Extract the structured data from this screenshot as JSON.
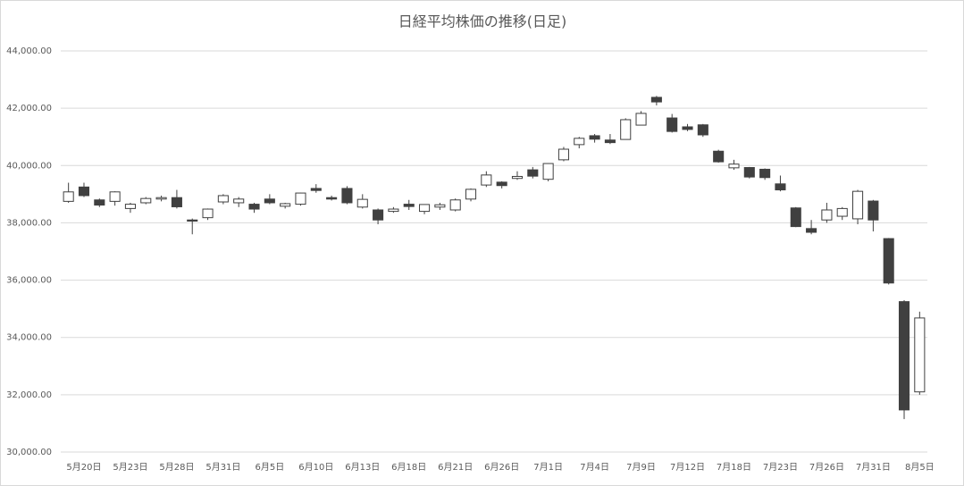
{
  "chart_data": {
    "type": "candlestick",
    "title": "日経平均株価の推移(日足)",
    "categories": [
      null,
      "5月20日",
      null,
      null,
      "5月23日",
      null,
      null,
      "5月28日",
      null,
      null,
      "5月31日",
      null,
      null,
      "6月5日",
      null,
      null,
      "6月10日",
      null,
      null,
      "6月13日",
      null,
      null,
      "6月18日",
      null,
      null,
      "6月21日",
      null,
      null,
      "6月26日",
      null,
      null,
      "7月1日",
      null,
      null,
      "7月4日",
      null,
      null,
      "7月9日",
      null,
      null,
      "7月12日",
      null,
      null,
      "7月18日",
      null,
      null,
      "7月23日",
      null,
      null,
      "7月26日",
      null,
      null,
      "7月31日",
      null,
      null,
      "8月5日"
    ],
    "open": [
      38750,
      39250,
      38800,
      38750,
      38500,
      38700,
      38830,
      38880,
      38100,
      38180,
      38730,
      38700,
      38650,
      38830,
      38580,
      38650,
      39200,
      38880,
      39200,
      38550,
      38450,
      38400,
      38650,
      38400,
      38550,
      38450,
      38830,
      39320,
      39420,
      39550,
      39850,
      39520,
      40200,
      40730,
      41040,
      40890,
      40910,
      41410,
      42380,
      41660,
      41350,
      41420,
      40500,
      39920,
      39930,
      39870,
      39360,
      38520,
      37800,
      38100,
      38230,
      38140,
      38760,
      37450,
      35250,
      32100
    ],
    "high": [
      39400,
      39400,
      38850,
      39100,
      38700,
      38900,
      38950,
      39150,
      38150,
      38500,
      39000,
      38900,
      38700,
      39000,
      38700,
      39050,
      39350,
      38950,
      39280,
      39000,
      38500,
      38550,
      38800,
      38650,
      38700,
      38850,
      39200,
      39800,
      39450,
      39800,
      39950,
      40080,
      40650,
      41000,
      41100,
      41100,
      41650,
      41900,
      42430,
      41800,
      41450,
      41450,
      40550,
      40200,
      39950,
      39900,
      39650,
      38550,
      38100,
      38700,
      38550,
      39150,
      38800,
      37470,
      35300,
      34900
    ],
    "low": [
      38700,
      38900,
      38550,
      38600,
      38350,
      38650,
      38750,
      38500,
      37600,
      38100,
      38650,
      38550,
      38350,
      38650,
      38500,
      38600,
      39050,
      38780,
      38650,
      38500,
      37950,
      38350,
      38450,
      38300,
      38450,
      38400,
      38750,
      39250,
      39200,
      39500,
      39550,
      39450,
      40150,
      40600,
      40800,
      40750,
      40900,
      41400,
      42100,
      41150,
      41200,
      41000,
      40100,
      39850,
      39550,
      39500,
      39100,
      37850,
      37600,
      38000,
      38100,
      37950,
      37700,
      35850,
      31150,
      32000
    ],
    "close": [
      39080,
      38950,
      38620,
      39080,
      38650,
      38850,
      38880,
      38560,
      38060,
      38480,
      38950,
      38830,
      38480,
      38700,
      38670,
      39040,
      39130,
      38830,
      38700,
      38820,
      38100,
      38480,
      38570,
      38640,
      38630,
      38800,
      39170,
      39670,
      39300,
      39620,
      39630,
      40070,
      40570,
      40950,
      40920,
      40800,
      41600,
      41820,
      42220,
      41190,
      41260,
      41070,
      40130,
      40050,
      39600,
      39580,
      39150,
      37870,
      37670,
      38450,
      38500,
      39100,
      38100,
      35900,
      31470,
      34680
    ],
    "colors": {
      "up": "#ffffff",
      "down": "#404040",
      "outline": "#404040"
    },
    "ylim": [
      30000,
      44000
    ],
    "yticks": [
      {
        "value": 30000,
        "label": "30,000.00"
      },
      {
        "value": 32000,
        "label": "32,000.00"
      },
      {
        "value": 34000,
        "label": "34,000.00"
      },
      {
        "value": 36000,
        "label": "36,000.00"
      },
      {
        "value": 38000,
        "label": "38,000.00"
      },
      {
        "value": 40000,
        "label": "40,000.00"
      },
      {
        "value": 42000,
        "label": "42,000.00"
      },
      {
        "value": 44000,
        "label": "44,000.00"
      }
    ],
    "grid": true
  }
}
